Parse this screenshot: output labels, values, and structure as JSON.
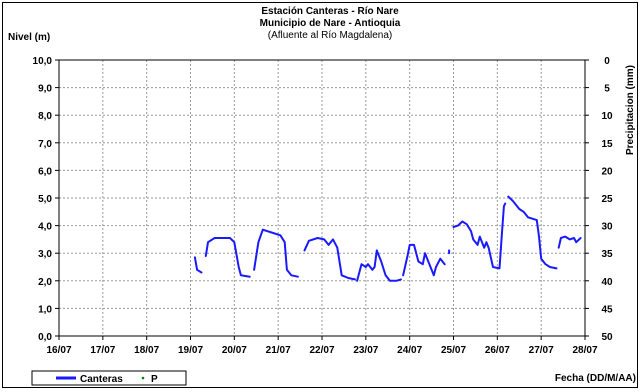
{
  "chart_data": {
    "type": "line",
    "title": "Estación Canteras - Río Nare",
    "subtitle": "Municipio de Nare - Antioquia",
    "subtitle2": "(Afluente al Río Magdalena)",
    "ylabel": "Nivel (m)",
    "y2label": "Precipitacion (mm)",
    "xlabel": "Fecha (DD/M/AA)",
    "ylim": [
      0,
      10
    ],
    "y2lim": [
      0,
      50
    ],
    "y2_inverted": true,
    "xlim": [
      0,
      12
    ],
    "x_ticks": [
      "16/07",
      "17/07",
      "18/07",
      "19/07",
      "20/07",
      "21/07",
      "22/07",
      "23/07",
      "24/07",
      "25/07",
      "26/07",
      "27/07",
      "28/07"
    ],
    "y_ticks": [
      "0,0",
      "1,0",
      "2,0",
      "3,0",
      "4,0",
      "5,0",
      "6,0",
      "7,0",
      "8,0",
      "9,0",
      "10,0"
    ],
    "y2_ticks": [
      "0",
      "5",
      "10",
      "15",
      "20",
      "25",
      "30",
      "35",
      "40",
      "45",
      "50"
    ],
    "grid": true,
    "legend_placement": "bottom-left",
    "series": [
      {
        "name": "Canteras",
        "color": "#1a1aff",
        "segments": [
          [
            [
              3.1,
              2.85
            ],
            [
              3.15,
              2.4
            ],
            [
              3.25,
              2.3
            ]
          ],
          [
            [
              3.35,
              2.9
            ],
            [
              3.4,
              3.4
            ],
            [
              3.55,
              3.55
            ],
            [
              3.9,
              3.55
            ],
            [
              4.0,
              3.4
            ],
            [
              4.1,
              2.5
            ],
            [
              4.15,
              2.2
            ],
            [
              4.35,
              2.15
            ]
          ],
          [
            [
              4.45,
              2.4
            ],
            [
              4.55,
              3.4
            ],
            [
              4.65,
              3.85
            ],
            [
              4.85,
              3.75
            ],
            [
              5.05,
              3.65
            ],
            [
              5.15,
              3.4
            ],
            [
              5.2,
              2.4
            ],
            [
              5.3,
              2.2
            ],
            [
              5.45,
              2.15
            ]
          ],
          [
            [
              5.6,
              3.1
            ],
            [
              5.7,
              3.45
            ],
            [
              5.9,
              3.55
            ],
            [
              6.05,
              3.5
            ],
            [
              6.15,
              3.3
            ],
            [
              6.25,
              3.5
            ],
            [
              6.35,
              3.2
            ],
            [
              6.45,
              2.2
            ],
            [
              6.6,
              2.1
            ],
            [
              6.75,
              2.05
            ]
          ],
          [
            [
              6.8,
              2.0
            ],
            [
              6.85,
              2.3
            ],
            [
              6.9,
              2.6
            ],
            [
              7.0,
              2.5
            ],
            [
              7.05,
              2.6
            ],
            [
              7.1,
              2.5
            ],
            [
              7.15,
              2.4
            ],
            [
              7.2,
              2.5
            ],
            [
              7.25,
              3.1
            ],
            [
              7.35,
              2.7
            ],
            [
              7.45,
              2.2
            ],
            [
              7.55,
              2.0
            ],
            [
              7.7,
              2.0
            ],
            [
              7.8,
              2.05
            ]
          ],
          [
            [
              7.85,
              2.2
            ],
            [
              7.95,
              2.9
            ],
            [
              8.0,
              3.3
            ],
            [
              8.1,
              3.3
            ],
            [
              8.2,
              2.7
            ],
            [
              8.3,
              2.6
            ],
            [
              8.35,
              3.0
            ],
            [
              8.45,
              2.6
            ],
            [
              8.55,
              2.2
            ],
            [
              8.6,
              2.5
            ],
            [
              8.7,
              2.8
            ],
            [
              8.8,
              2.6
            ]
          ],
          [
            [
              8.9,
              3.0
            ],
            [
              8.9,
              3.1
            ]
          ],
          [
            [
              9.0,
              3.95
            ],
            [
              9.1,
              4.0
            ],
            [
              9.2,
              4.15
            ],
            [
              9.3,
              4.05
            ],
            [
              9.4,
              3.8
            ],
            [
              9.45,
              3.5
            ],
            [
              9.55,
              3.3
            ],
            [
              9.6,
              3.6
            ],
            [
              9.65,
              3.4
            ],
            [
              9.7,
              3.2
            ],
            [
              9.75,
              3.4
            ],
            [
              9.8,
              3.2
            ],
            [
              9.9,
              2.5
            ],
            [
              10.05,
              2.45
            ],
            [
              10.1,
              3.6
            ],
            [
              10.15,
              4.7
            ],
            [
              10.18,
              4.8
            ]
          ],
          [
            [
              10.25,
              5.05
            ],
            [
              10.35,
              4.9
            ],
            [
              10.5,
              4.6
            ],
            [
              10.6,
              4.5
            ],
            [
              10.7,
              4.3
            ],
            [
              10.8,
              4.25
            ],
            [
              10.9,
              4.2
            ],
            [
              10.95,
              3.6
            ],
            [
              11.0,
              2.8
            ],
            [
              11.1,
              2.6
            ],
            [
              11.2,
              2.5
            ],
            [
              11.35,
              2.45
            ]
          ],
          [
            [
              11.4,
              3.2
            ],
            [
              11.45,
              3.55
            ],
            [
              11.55,
              3.6
            ],
            [
              11.65,
              3.5
            ],
            [
              11.75,
              3.55
            ],
            [
              11.8,
              3.4
            ],
            [
              11.9,
              3.55
            ]
          ]
        ]
      },
      {
        "name": "P",
        "color": "#008000",
        "values": []
      }
    ]
  }
}
